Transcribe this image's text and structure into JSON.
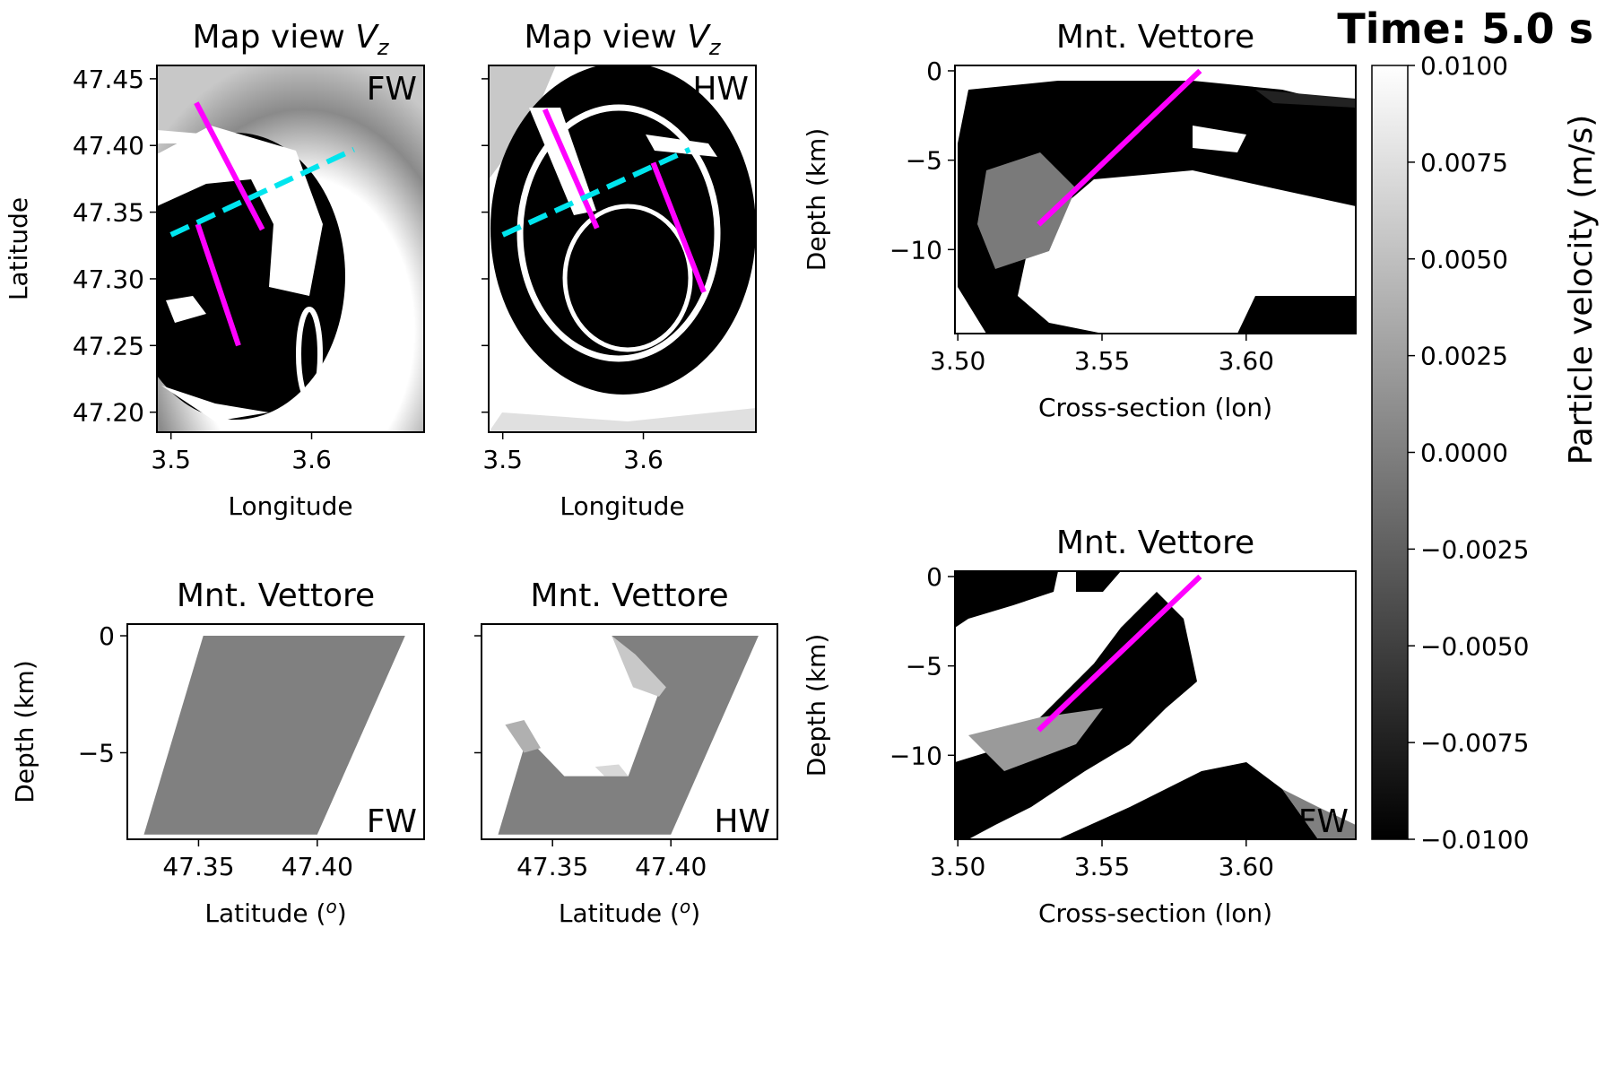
{
  "figure": {
    "time_label": "Time: 5.0 s"
  },
  "chart_data": [
    {
      "id": "map_fw",
      "type": "heatmap",
      "title": "Map view ",
      "title_sub": "z",
      "xlabel": "Longitude",
      "ylabel": "Latitude",
      "xlim": [
        3.49,
        3.68
      ],
      "ylim": [
        47.185,
        47.46
      ],
      "xticks": [
        3.5,
        3.6
      ],
      "xtick_labels": [
        "3.5",
        "3.6"
      ],
      "yticks": [
        47.2,
        47.25,
        47.3,
        47.35,
        47.4,
        47.45
      ],
      "ytick_labels": [
        "47.20",
        "47.25",
        "47.30",
        "47.35",
        "47.40",
        "47.45"
      ],
      "corner_label": "FW",
      "fault_traces": [
        {
          "color": "#ff00ff",
          "points": [
            [
              3.519,
              47.341
            ],
            [
              3.548,
              47.25
            ]
          ]
        },
        {
          "color": "#ff00ff",
          "points": [
            [
              3.518,
              47.432
            ],
            [
              3.565,
              47.337
            ]
          ]
        }
      ],
      "profile_line": {
        "color": "#00e5ee",
        "style": "dashed",
        "points": [
          [
            3.5,
            47.333
          ],
          [
            3.63,
            47.397
          ]
        ]
      }
    },
    {
      "id": "map_hw",
      "type": "heatmap",
      "title": "Map view ",
      "title_sub": "z",
      "xlabel": "Longitude",
      "ylabel": "",
      "xlim": [
        3.49,
        3.68
      ],
      "ylim": [
        47.185,
        47.46
      ],
      "xticks": [
        3.5,
        3.6
      ],
      "xtick_labels": [
        "3.5",
        "3.6"
      ],
      "yticks": [
        47.2,
        47.25,
        47.3,
        47.35,
        47.4,
        47.45
      ],
      "ytick_labels": [],
      "corner_label": "HW",
      "fault_traces": [
        {
          "color": "#ff00ff",
          "points": [
            [
              3.53,
              47.427
            ],
            [
              3.567,
              47.338
            ]
          ]
        },
        {
          "color": "#ff00ff",
          "points": [
            [
              3.607,
              47.387
            ],
            [
              3.643,
              47.29
            ]
          ]
        }
      ],
      "profile_line": {
        "color": "#00e5ee",
        "style": "dashed",
        "points": [
          [
            3.5,
            47.333
          ],
          [
            3.633,
            47.397
          ]
        ]
      }
    },
    {
      "id": "fault_fw",
      "type": "heatmap",
      "title": "Mnt. Vettore",
      "xlabel": "Latitude (",
      "xlabel_sup": "o",
      "xlabel_end": ")",
      "ylabel": "Depth (km)",
      "xlim": [
        47.32,
        47.445
      ],
      "ylim": [
        -8.7,
        0.5
      ],
      "xticks": [
        47.35,
        47.4
      ],
      "xtick_labels": [
        "47.35",
        "47.40"
      ],
      "yticks": [
        0,
        -5
      ],
      "ytick_labels": [
        "0",
        "−5"
      ],
      "corner_label": "FW",
      "fault_plane": [
        [
          47.352,
          0
        ],
        [
          47.437,
          0
        ],
        [
          47.4,
          -8.5
        ],
        [
          47.327,
          -8.5
        ]
      ],
      "plane_color": "#808080",
      "slip_patches": []
    },
    {
      "id": "fault_hw",
      "type": "heatmap",
      "title": "Mnt. Vettore",
      "xlabel": "Latitude (",
      "xlabel_sup": "o",
      "xlabel_end": ")",
      "ylabel": "",
      "xlim": [
        47.32,
        47.445
      ],
      "ylim": [
        -8.7,
        0.5
      ],
      "xticks": [
        47.35,
        47.4
      ],
      "xtick_labels": [
        "47.35",
        "47.40"
      ],
      "yticks": [
        0,
        -5
      ],
      "ytick_labels": [],
      "corner_label": "HW",
      "fault_plane": [
        [
          47.352,
          0
        ],
        [
          47.437,
          0
        ],
        [
          47.4,
          -8.5
        ],
        [
          47.327,
          -8.5
        ]
      ],
      "plane_color": "#808080",
      "slip_patches": [
        {
          "color": "#ffffff",
          "points": [
            [
              47.348,
              0
            ],
            [
              47.375,
              0
            ],
            [
              47.395,
              -2.4
            ],
            [
              47.382,
              -6.0
            ],
            [
              47.355,
              -6.0
            ],
            [
              47.335,
              -3.9
            ]
          ]
        },
        {
          "color": "#c8c8c8",
          "points": [
            [
              47.375,
              0
            ],
            [
              47.385,
              -0.8
            ],
            [
              47.398,
              -2.2
            ],
            [
              47.395,
              -2.6
            ],
            [
              47.384,
              -2.2
            ]
          ]
        },
        {
          "color": "#b0b0b0",
          "points": [
            [
              47.33,
              -3.8
            ],
            [
              47.338,
              -3.6
            ],
            [
              47.345,
              -4.8
            ],
            [
              47.338,
              -5.0
            ]
          ]
        },
        {
          "color": "#d8d8d8",
          "points": [
            [
              47.382,
              -6.0
            ],
            [
              47.372,
              -6.0
            ],
            [
              47.368,
              -5.6
            ],
            [
              47.378,
              -5.5
            ]
          ]
        }
      ]
    },
    {
      "id": "xsec_hw",
      "type": "heatmap",
      "title": "Mnt. Vettore",
      "xlabel": "Cross-section (lon)",
      "ylabel": "Depth (km)",
      "xlim": [
        3.499,
        3.638
      ],
      "ylim": [
        -14.7,
        0.3
      ],
      "xticks": [
        3.5,
        3.55,
        3.6
      ],
      "xtick_labels": [
        "3.50",
        "3.55",
        "3.60"
      ],
      "yticks": [
        0,
        -5,
        -10
      ],
      "ytick_labels": [
        "0",
        "−5",
        "−10"
      ],
      "corner_label": "HW",
      "fault_line": {
        "color": "#ff00ff",
        "points": [
          [
            3.528,
            -8.6
          ],
          [
            3.584,
            0
          ]
        ]
      }
    },
    {
      "id": "xsec_fw",
      "type": "heatmap",
      "title": "Mnt. Vettore",
      "xlabel": "Cross-section (lon)",
      "ylabel": "Depth (km)",
      "xlim": [
        3.499,
        3.638
      ],
      "ylim": [
        -14.7,
        0.3
      ],
      "xticks": [
        3.5,
        3.55,
        3.6
      ],
      "xtick_labels": [
        "3.50",
        "3.55",
        "3.60"
      ],
      "yticks": [
        0,
        -5,
        -10
      ],
      "ytick_labels": [
        "0",
        "−5",
        "−10"
      ],
      "corner_label": "FW",
      "fault_line": {
        "color": "#ff00ff",
        "points": [
          [
            3.528,
            -8.6
          ],
          [
            3.584,
            0
          ]
        ]
      }
    },
    {
      "id": "colorbar",
      "type": "heatmap",
      "label": "Particle velocity (m/s)",
      "range": [
        -0.01,
        0.01
      ],
      "ticks": [
        -0.01,
        -0.0075,
        -0.005,
        -0.0025,
        0,
        0.0025,
        0.005,
        0.0075,
        0.01
      ],
      "tick_labels": [
        "−0.0100",
        "−0.0075",
        "−0.0050",
        "−0.0025",
        "0.0000",
        "0.0025",
        "0.0050",
        "0.0075",
        "0.0100"
      ],
      "colormap": "gray"
    }
  ]
}
